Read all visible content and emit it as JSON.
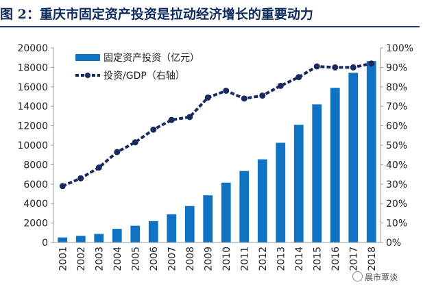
{
  "figure_title": "图 2：重庆市固定资产投资是拉动经济增长的重要动力",
  "watermark": "晨市覃谈",
  "colors": {
    "bar": "#0f72c2",
    "line": "#1a2a5e",
    "axis": "#9a9a9a",
    "title": "#0d2a5c"
  },
  "chart_data": {
    "type": "bar",
    "categories": [
      "2001",
      "2002",
      "2003",
      "2004",
      "2005",
      "2006",
      "2007",
      "2008",
      "2009",
      "2010",
      "2011",
      "2012",
      "2013",
      "2014",
      "2015",
      "2016",
      "2017",
      "2018"
    ],
    "series": [
      {
        "name": "固定资产投资（亿元）",
        "type": "bar",
        "axis": "left",
        "values": [
          520,
          680,
          880,
          1400,
          1720,
          2200,
          2900,
          3750,
          4850,
          6150,
          7350,
          8550,
          10250,
          12100,
          14200,
          15900,
          17450,
          18650
        ]
      },
      {
        "name": "投资/GDP（右轴）",
        "type": "line",
        "axis": "right",
        "values": [
          29,
          33,
          38.5,
          46.5,
          51.5,
          58,
          63,
          64.5,
          74.5,
          78,
          74,
          75.5,
          80.5,
          85,
          90.5,
          90,
          90,
          92
        ]
      }
    ],
    "y_left": {
      "lim": [
        0,
        20000
      ],
      "ticks": [
        "0",
        "2000",
        "4000",
        "6000",
        "8000",
        "10000",
        "12000",
        "14000",
        "16000",
        "18000",
        "20000"
      ]
    },
    "y_right": {
      "lim": [
        0,
        100
      ],
      "ticks": [
        "0%",
        "10%",
        "20%",
        "30%",
        "40%",
        "50%",
        "60%",
        "70%",
        "80%",
        "90%",
        "100%"
      ]
    },
    "legend_position": "top-left",
    "grid": false
  }
}
